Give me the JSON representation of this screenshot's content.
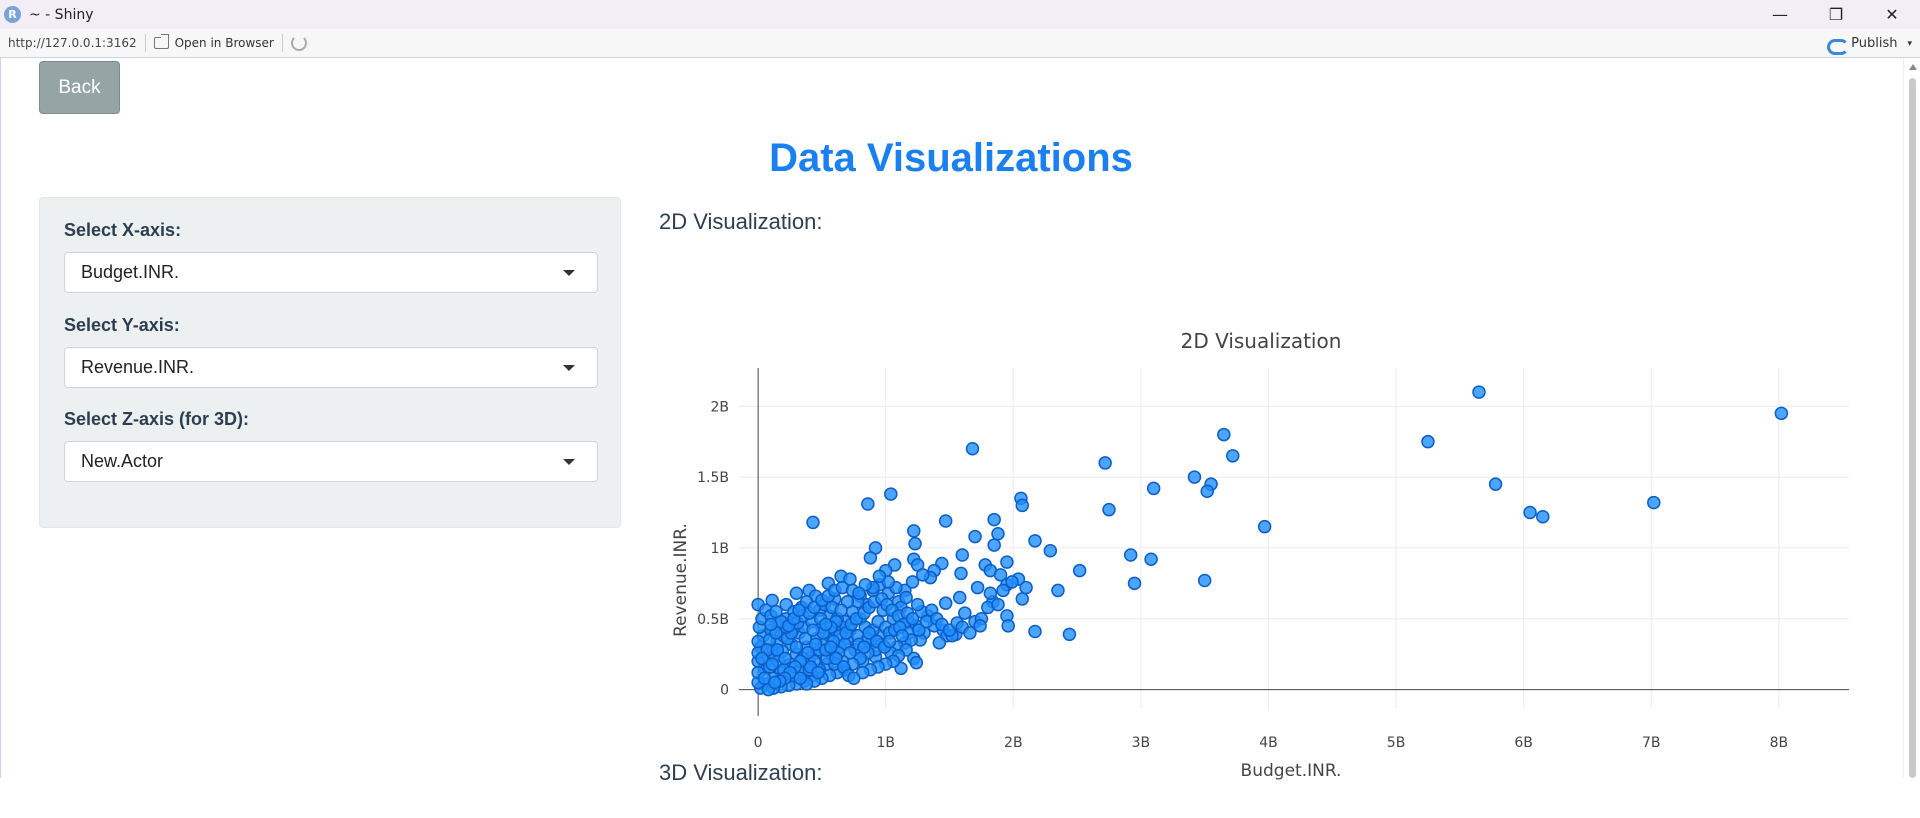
{
  "window": {
    "icon_letter": "R",
    "title": "~ - Shiny",
    "minimize_glyph": "—",
    "restore_glyph": "❐",
    "close_glyph": "✕"
  },
  "toolbar": {
    "url": "http://127.0.0.1:3162",
    "open_in_browser": "Open in Browser",
    "publish": "Publish",
    "publish_caret": "▾"
  },
  "app": {
    "back_label": "Back",
    "title": "Data Visualizations",
    "inputs": {
      "x": {
        "label": "Select X-axis:",
        "value": "Budget.INR."
      },
      "y": {
        "label": "Select Y-axis:",
        "value": "Revenue.INR."
      },
      "z": {
        "label": "Select Z-axis (for 3D):",
        "value": "New.Actor"
      }
    },
    "section_2d": "2D Visualization:",
    "section_3d": "3D Visualization:"
  },
  "colors": {
    "accent": "#1a80f0",
    "marker": "#1f8fff",
    "marker_outline": "#0d5ec4",
    "sidebar_bg": "#ecf0f1",
    "back_button": "#95a5a6"
  },
  "chart_data": {
    "type": "scatter",
    "title": "2D Visualization",
    "xlabel": "Budget.INR.",
    "ylabel": "Revenue.INR.",
    "xlim": [
      -0.15,
      8.55
    ],
    "ylim": [
      -0.13,
      2.27
    ],
    "x_unit": "B",
    "y_unit": "B",
    "x_ticks": [
      0,
      1,
      2,
      3,
      4,
      5,
      6,
      7,
      8
    ],
    "x_tick_labels": [
      "0",
      "1B",
      "2B",
      "3B",
      "4B",
      "5B",
      "6B",
      "7B",
      "8B"
    ],
    "y_ticks": [
      0,
      0.5,
      1,
      1.5,
      2
    ],
    "y_tick_labels": [
      "0",
      "0.5B",
      "1B",
      "1.5B",
      "2B"
    ],
    "grid": true,
    "points": [
      [
        5.65,
        2.1
      ],
      [
        8.02,
        1.95
      ],
      [
        5.25,
        1.75
      ],
      [
        3.65,
        1.8
      ],
      [
        3.72,
        1.65
      ],
      [
        1.68,
        1.7
      ],
      [
        2.72,
        1.6
      ],
      [
        3.42,
        1.5
      ],
      [
        3.55,
        1.45
      ],
      [
        3.52,
        1.4
      ],
      [
        3.1,
        1.42
      ],
      [
        5.78,
        1.45
      ],
      [
        6.05,
        1.25
      ],
      [
        6.15,
        1.22
      ],
      [
        7.02,
        1.32
      ],
      [
        3.97,
        1.15
      ],
      [
        2.06,
        1.35
      ],
      [
        2.07,
        1.3
      ],
      [
        1.04,
        1.38
      ],
      [
        0.86,
        1.31
      ],
      [
        2.75,
        1.27
      ],
      [
        0.43,
        1.18
      ],
      [
        1.47,
        1.19
      ],
      [
        1.85,
        1.2
      ],
      [
        2.92,
        0.95
      ],
      [
        3.08,
        0.92
      ],
      [
        2.95,
        0.75
      ],
      [
        3.5,
        0.77
      ],
      [
        2.44,
        0.39
      ],
      [
        2.17,
        0.41
      ],
      [
        2.52,
        0.84
      ],
      [
        2.35,
        0.7
      ],
      [
        2.29,
        0.98
      ],
      [
        1.22,
        1.12
      ],
      [
        1.88,
        1.1
      ],
      [
        2.17,
        1.05
      ],
      [
        0.92,
        1.0
      ],
      [
        1.23,
        1.03
      ],
      [
        1.6,
        0.95
      ],
      [
        1.85,
        1.02
      ],
      [
        1.7,
        1.08
      ],
      [
        1.95,
        0.9
      ],
      [
        1.78,
        0.88
      ],
      [
        1.82,
        0.84
      ],
      [
        1.22,
        0.92
      ],
      [
        1.25,
        0.88
      ],
      [
        1.44,
        0.89
      ],
      [
        1.38,
        0.84
      ],
      [
        1.07,
        0.88
      ],
      [
        0.88,
        0.93
      ],
      [
        1.0,
        0.84
      ],
      [
        1.35,
        0.79
      ],
      [
        1.59,
        0.82
      ],
      [
        1.9,
        0.81
      ],
      [
        2.04,
        0.78
      ],
      [
        1.72,
        0.72
      ],
      [
        1.95,
        0.74
      ],
      [
        2.1,
        0.72
      ],
      [
        1.84,
        0.62
      ],
      [
        2.07,
        0.64
      ],
      [
        1.95,
        0.52
      ],
      [
        1.96,
        0.45
      ],
      [
        1.82,
        0.68
      ],
      [
        1.58,
        0.65
      ],
      [
        1.47,
        0.61
      ],
      [
        1.62,
        0.54
      ],
      [
        1.7,
        0.48
      ],
      [
        1.75,
        0.5
      ],
      [
        1.55,
        0.39
      ],
      [
        1.45,
        0.42
      ],
      [
        1.48,
        0.38
      ],
      [
        1.52,
        0.38
      ],
      [
        1.38,
        0.45
      ],
      [
        1.42,
        0.33
      ],
      [
        1.33,
        0.52
      ],
      [
        1.28,
        0.55
      ],
      [
        1.25,
        0.6
      ],
      [
        1.1,
        0.62
      ],
      [
        0.65,
        0.8
      ],
      [
        0.55,
        0.75
      ],
      [
        0.72,
        0.78
      ],
      [
        0.4,
        0.7
      ],
      [
        0.3,
        0.68
      ],
      [
        0.22,
        0.6
      ],
      [
        0.11,
        0.63
      ],
      [
        0.0,
        0.6
      ],
      [
        0.45,
        0.66
      ],
      [
        0.6,
        0.64
      ],
      [
        0.8,
        0.66
      ],
      [
        0.9,
        0.7
      ],
      [
        0.95,
        0.74
      ],
      [
        1.02,
        0.68
      ],
      [
        1.15,
        0.7
      ],
      [
        1.21,
        0.76
      ],
      [
        1.29,
        0.81
      ],
      [
        1.12,
        0.58
      ],
      [
        0.98,
        0.56
      ],
      [
        0.85,
        0.6
      ],
      [
        1.06,
        0.5
      ],
      [
        1.18,
        0.48
      ],
      [
        1.24,
        0.45
      ],
      [
        1.3,
        0.4
      ],
      [
        1.27,
        0.35
      ],
      [
        1.15,
        0.33
      ],
      [
        1.09,
        0.3
      ],
      [
        1.04,
        0.26
      ],
      [
        1.22,
        0.22
      ],
      [
        1.24,
        0.19
      ],
      [
        1.12,
        0.15
      ],
      [
        0.92,
        0.23
      ],
      [
        0.82,
        0.2
      ],
      [
        0.76,
        0.28
      ],
      [
        0.88,
        0.32
      ],
      [
        0.96,
        0.38
      ],
      [
        0.72,
        0.42
      ],
      [
        0.68,
        0.48
      ],
      [
        0.56,
        0.52
      ],
      [
        0.5,
        0.44
      ],
      [
        0.46,
        0.36
      ],
      [
        0.38,
        0.3
      ],
      [
        0.3,
        0.25
      ],
      [
        0.25,
        0.18
      ],
      [
        0.18,
        0.12
      ],
      [
        0.12,
        0.08
      ],
      [
        0.06,
        0.04
      ],
      [
        0.02,
        0.01
      ],
      [
        0.05,
        0.15
      ],
      [
        0.08,
        0.22
      ],
      [
        0.12,
        0.28
      ],
      [
        0.15,
        0.34
      ],
      [
        0.02,
        0.3
      ],
      [
        0.04,
        0.38
      ],
      [
        0.1,
        0.42
      ],
      [
        0.16,
        0.46
      ],
      [
        0.22,
        0.5
      ],
      [
        0.28,
        0.55
      ],
      [
        0.34,
        0.58
      ],
      [
        0.38,
        0.62
      ],
      [
        0.2,
        0.38
      ],
      [
        0.26,
        0.32
      ],
      [
        0.32,
        0.4
      ],
      [
        0.36,
        0.44
      ],
      [
        0.42,
        0.48
      ],
      [
        0.48,
        0.56
      ],
      [
        0.52,
        0.6
      ],
      [
        0.58,
        0.58
      ],
      [
        0.62,
        0.5
      ],
      [
        0.66,
        0.44
      ],
      [
        0.7,
        0.36
      ],
      [
        0.64,
        0.3
      ],
      [
        0.58,
        0.24
      ],
      [
        0.54,
        0.18
      ],
      [
        0.48,
        0.14
      ],
      [
        0.42,
        0.1
      ],
      [
        0.36,
        0.06
      ],
      [
        0.3,
        0.04
      ],
      [
        0.24,
        0.03
      ],
      [
        0.18,
        0.02
      ],
      [
        0.12,
        0.01
      ],
      [
        0.08,
        0.0
      ],
      [
        0.0,
        0.05
      ],
      [
        0.0,
        0.12
      ],
      [
        0.0,
        0.2
      ],
      [
        0.0,
        0.26
      ],
      [
        0.0,
        0.34
      ],
      [
        0.01,
        0.44
      ],
      [
        0.03,
        0.5
      ],
      [
        0.06,
        0.56
      ],
      [
        0.1,
        0.52
      ],
      [
        0.14,
        0.55
      ],
      [
        0.09,
        0.35
      ],
      [
        0.13,
        0.24
      ],
      [
        0.19,
        0.27
      ],
      [
        0.23,
        0.36
      ],
      [
        0.27,
        0.42
      ],
      [
        0.31,
        0.47
      ],
      [
        0.35,
        0.52
      ],
      [
        0.4,
        0.54
      ],
      [
        0.44,
        0.58
      ],
      [
        0.5,
        0.63
      ],
      [
        0.55,
        0.66
      ],
      [
        0.6,
        0.7
      ],
      [
        0.66,
        0.72
      ],
      [
        0.74,
        0.7
      ],
      [
        0.78,
        0.62
      ],
      [
        0.74,
        0.55
      ],
      [
        0.8,
        0.5
      ],
      [
        0.84,
        0.44
      ],
      [
        0.78,
        0.38
      ],
      [
        0.86,
        0.36
      ],
      [
        0.9,
        0.42
      ],
      [
        0.94,
        0.48
      ],
      [
        1.0,
        0.44
      ],
      [
        1.03,
        0.4
      ],
      [
        0.97,
        0.32
      ],
      [
        0.92,
        0.28
      ],
      [
        0.86,
        0.26
      ],
      [
        0.8,
        0.22
      ],
      [
        0.74,
        0.18
      ],
      [
        0.68,
        0.14
      ],
      [
        0.62,
        0.12
      ],
      [
        0.56,
        0.1
      ],
      [
        0.5,
        0.08
      ],
      [
        0.44,
        0.06
      ],
      [
        0.38,
        0.04
      ],
      [
        0.34,
        0.14
      ],
      [
        0.4,
        0.2
      ],
      [
        0.46,
        0.26
      ],
      [
        0.52,
        0.32
      ],
      [
        0.56,
        0.38
      ],
      [
        0.6,
        0.42
      ],
      [
        0.64,
        0.38
      ],
      [
        0.68,
        0.32
      ],
      [
        0.72,
        0.26
      ],
      [
        0.66,
        0.2
      ],
      [
        0.6,
        0.18
      ],
      [
        0.54,
        0.22
      ],
      [
        0.48,
        0.28
      ],
      [
        0.44,
        0.2
      ],
      [
        0.4,
        0.14
      ],
      [
        0.35,
        0.22
      ],
      [
        0.3,
        0.3
      ],
      [
        0.26,
        0.4
      ],
      [
        0.22,
        0.44
      ],
      [
        0.18,
        0.48
      ],
      [
        0.14,
        0.4
      ],
      [
        0.1,
        0.46
      ],
      [
        0.07,
        0.28
      ],
      [
        0.05,
        0.08
      ],
      [
        0.03,
        0.22
      ],
      [
        0.09,
        0.16
      ],
      [
        0.16,
        0.2
      ],
      [
        0.2,
        0.14
      ],
      [
        0.27,
        0.1
      ],
      [
        0.33,
        0.08
      ],
      [
        0.41,
        0.16
      ],
      [
        0.47,
        0.12
      ],
      [
        0.53,
        0.28
      ],
      [
        0.59,
        0.34
      ],
      [
        0.63,
        0.26
      ],
      [
        0.69,
        0.4
      ],
      [
        0.73,
        0.46
      ],
      [
        0.77,
        0.5
      ],
      [
        0.83,
        0.54
      ],
      [
        0.87,
        0.58
      ],
      [
        0.91,
        0.62
      ],
      [
        0.97,
        0.64
      ],
      [
        1.01,
        0.6
      ],
      [
        1.05,
        0.56
      ],
      [
        1.1,
        0.52
      ],
      [
        1.14,
        0.46
      ],
      [
        1.18,
        0.4
      ],
      [
        1.2,
        0.35
      ],
      [
        1.16,
        0.28
      ],
      [
        1.1,
        0.24
      ],
      [
        1.06,
        0.2
      ],
      [
        1.0,
        0.18
      ],
      [
        0.94,
        0.16
      ],
      [
        0.88,
        0.14
      ],
      [
        0.82,
        0.12
      ],
      [
        1.16,
        0.65
      ],
      [
        1.08,
        0.72
      ],
      [
        1.02,
        0.76
      ],
      [
        0.95,
        0.8
      ],
      [
        0.9,
        0.72
      ],
      [
        0.84,
        0.74
      ],
      [
        0.79,
        0.68
      ],
      [
        0.7,
        0.62
      ],
      [
        0.65,
        0.56
      ],
      [
        0.61,
        0.48
      ],
      [
        0.57,
        0.44
      ],
      [
        0.51,
        0.4
      ],
      [
        0.45,
        0.32
      ],
      [
        0.39,
        0.26
      ],
      [
        0.33,
        0.2
      ],
      [
        0.29,
        0.16
      ],
      [
        0.25,
        0.12
      ],
      [
        0.21,
        0.08
      ],
      [
        0.17,
        0.06
      ],
      [
        0.13,
        0.05
      ],
      [
        0.11,
        0.18
      ],
      [
        0.15,
        0.28
      ],
      [
        0.21,
        0.22
      ],
      [
        0.24,
        0.45
      ],
      [
        0.28,
        0.5
      ],
      [
        0.32,
        0.56
      ],
      [
        0.37,
        0.36
      ],
      [
        0.43,
        0.42
      ],
      [
        0.49,
        0.5
      ],
      [
        0.53,
        0.46
      ],
      [
        0.57,
        0.3
      ],
      [
        0.61,
        0.22
      ],
      [
        0.67,
        0.16
      ],
      [
        0.71,
        0.1
      ],
      [
        0.75,
        0.08
      ],
      [
        0.79,
        0.32
      ],
      [
        0.83,
        0.3
      ],
      [
        0.87,
        0.4
      ],
      [
        0.93,
        0.34
      ],
      [
        0.99,
        0.3
      ],
      [
        1.03,
        0.34
      ],
      [
        1.07,
        0.42
      ],
      [
        1.11,
        0.44
      ],
      [
        1.13,
        0.38
      ],
      [
        1.17,
        0.54
      ],
      [
        1.21,
        0.5
      ],
      [
        1.26,
        0.42
      ],
      [
        1.32,
        0.48
      ],
      [
        1.36,
        0.56
      ],
      [
        1.4,
        0.5
      ],
      [
        1.44,
        0.46
      ],
      [
        1.5,
        0.42
      ],
      [
        1.56,
        0.47
      ],
      [
        1.6,
        0.44
      ],
      [
        1.66,
        0.4
      ],
      [
        1.74,
        0.45
      ],
      [
        1.8,
        0.58
      ],
      [
        1.88,
        0.6
      ],
      [
        1.92,
        0.7
      ],
      [
        1.99,
        0.76
      ]
    ]
  }
}
